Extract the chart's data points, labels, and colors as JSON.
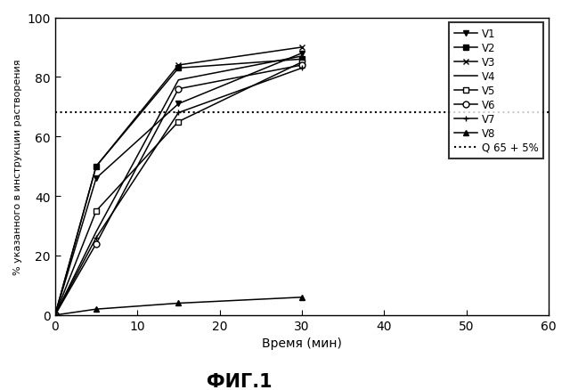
{
  "title": "ФИГ.1",
  "xlabel": "Время (мин)",
  "ylabel": "% указанного в инструкции растворения",
  "xlim": [
    0,
    60
  ],
  "ylim": [
    0,
    100
  ],
  "xticks": [
    0,
    10,
    20,
    30,
    40,
    50,
    60
  ],
  "yticks": [
    0,
    20,
    40,
    60,
    80,
    100
  ],
  "reference_line": 68,
  "series": [
    {
      "name": "V1",
      "x": [
        0,
        5,
        15,
        30
      ],
      "y": [
        0,
        46,
        71,
        88
      ],
      "marker": "v",
      "fillstyle": "full"
    },
    {
      "name": "V2",
      "x": [
        0,
        5,
        15,
        30
      ],
      "y": [
        0,
        50,
        83,
        86
      ],
      "marker": "s",
      "fillstyle": "full"
    },
    {
      "name": "V3",
      "x": [
        0,
        5,
        15,
        30
      ],
      "y": [
        0,
        50,
        84,
        90
      ],
      "marker": "x",
      "fillstyle": "full"
    },
    {
      "name": "V4",
      "x": [
        0,
        5,
        15,
        30
      ],
      "y": [
        0,
        28,
        79,
        87
      ],
      "marker": "",
      "fillstyle": "full"
    },
    {
      "name": "V5",
      "x": [
        0,
        5,
        15,
        30
      ],
      "y": [
        0,
        35,
        65,
        85
      ],
      "marker": "s",
      "fillstyle": "none"
    },
    {
      "name": "V6",
      "x": [
        0,
        5,
        15,
        30
      ],
      "y": [
        0,
        24,
        76,
        84
      ],
      "marker": "o",
      "fillstyle": "none"
    },
    {
      "name": "V7",
      "x": [
        0,
        5,
        15,
        30
      ],
      "y": [
        0,
        26,
        68,
        83
      ],
      "marker": "+",
      "fillstyle": "full"
    },
    {
      "name": "V8",
      "x": [
        0,
        5,
        15,
        30
      ],
      "y": [
        0,
        2,
        4,
        6
      ],
      "marker": "^",
      "fillstyle": "full"
    }
  ],
  "background_color": "#ffffff",
  "legend_fontsize": 8.5,
  "axis_fontsize": 10,
  "ylabel_fontsize": 8,
  "title_fontsize": 15
}
